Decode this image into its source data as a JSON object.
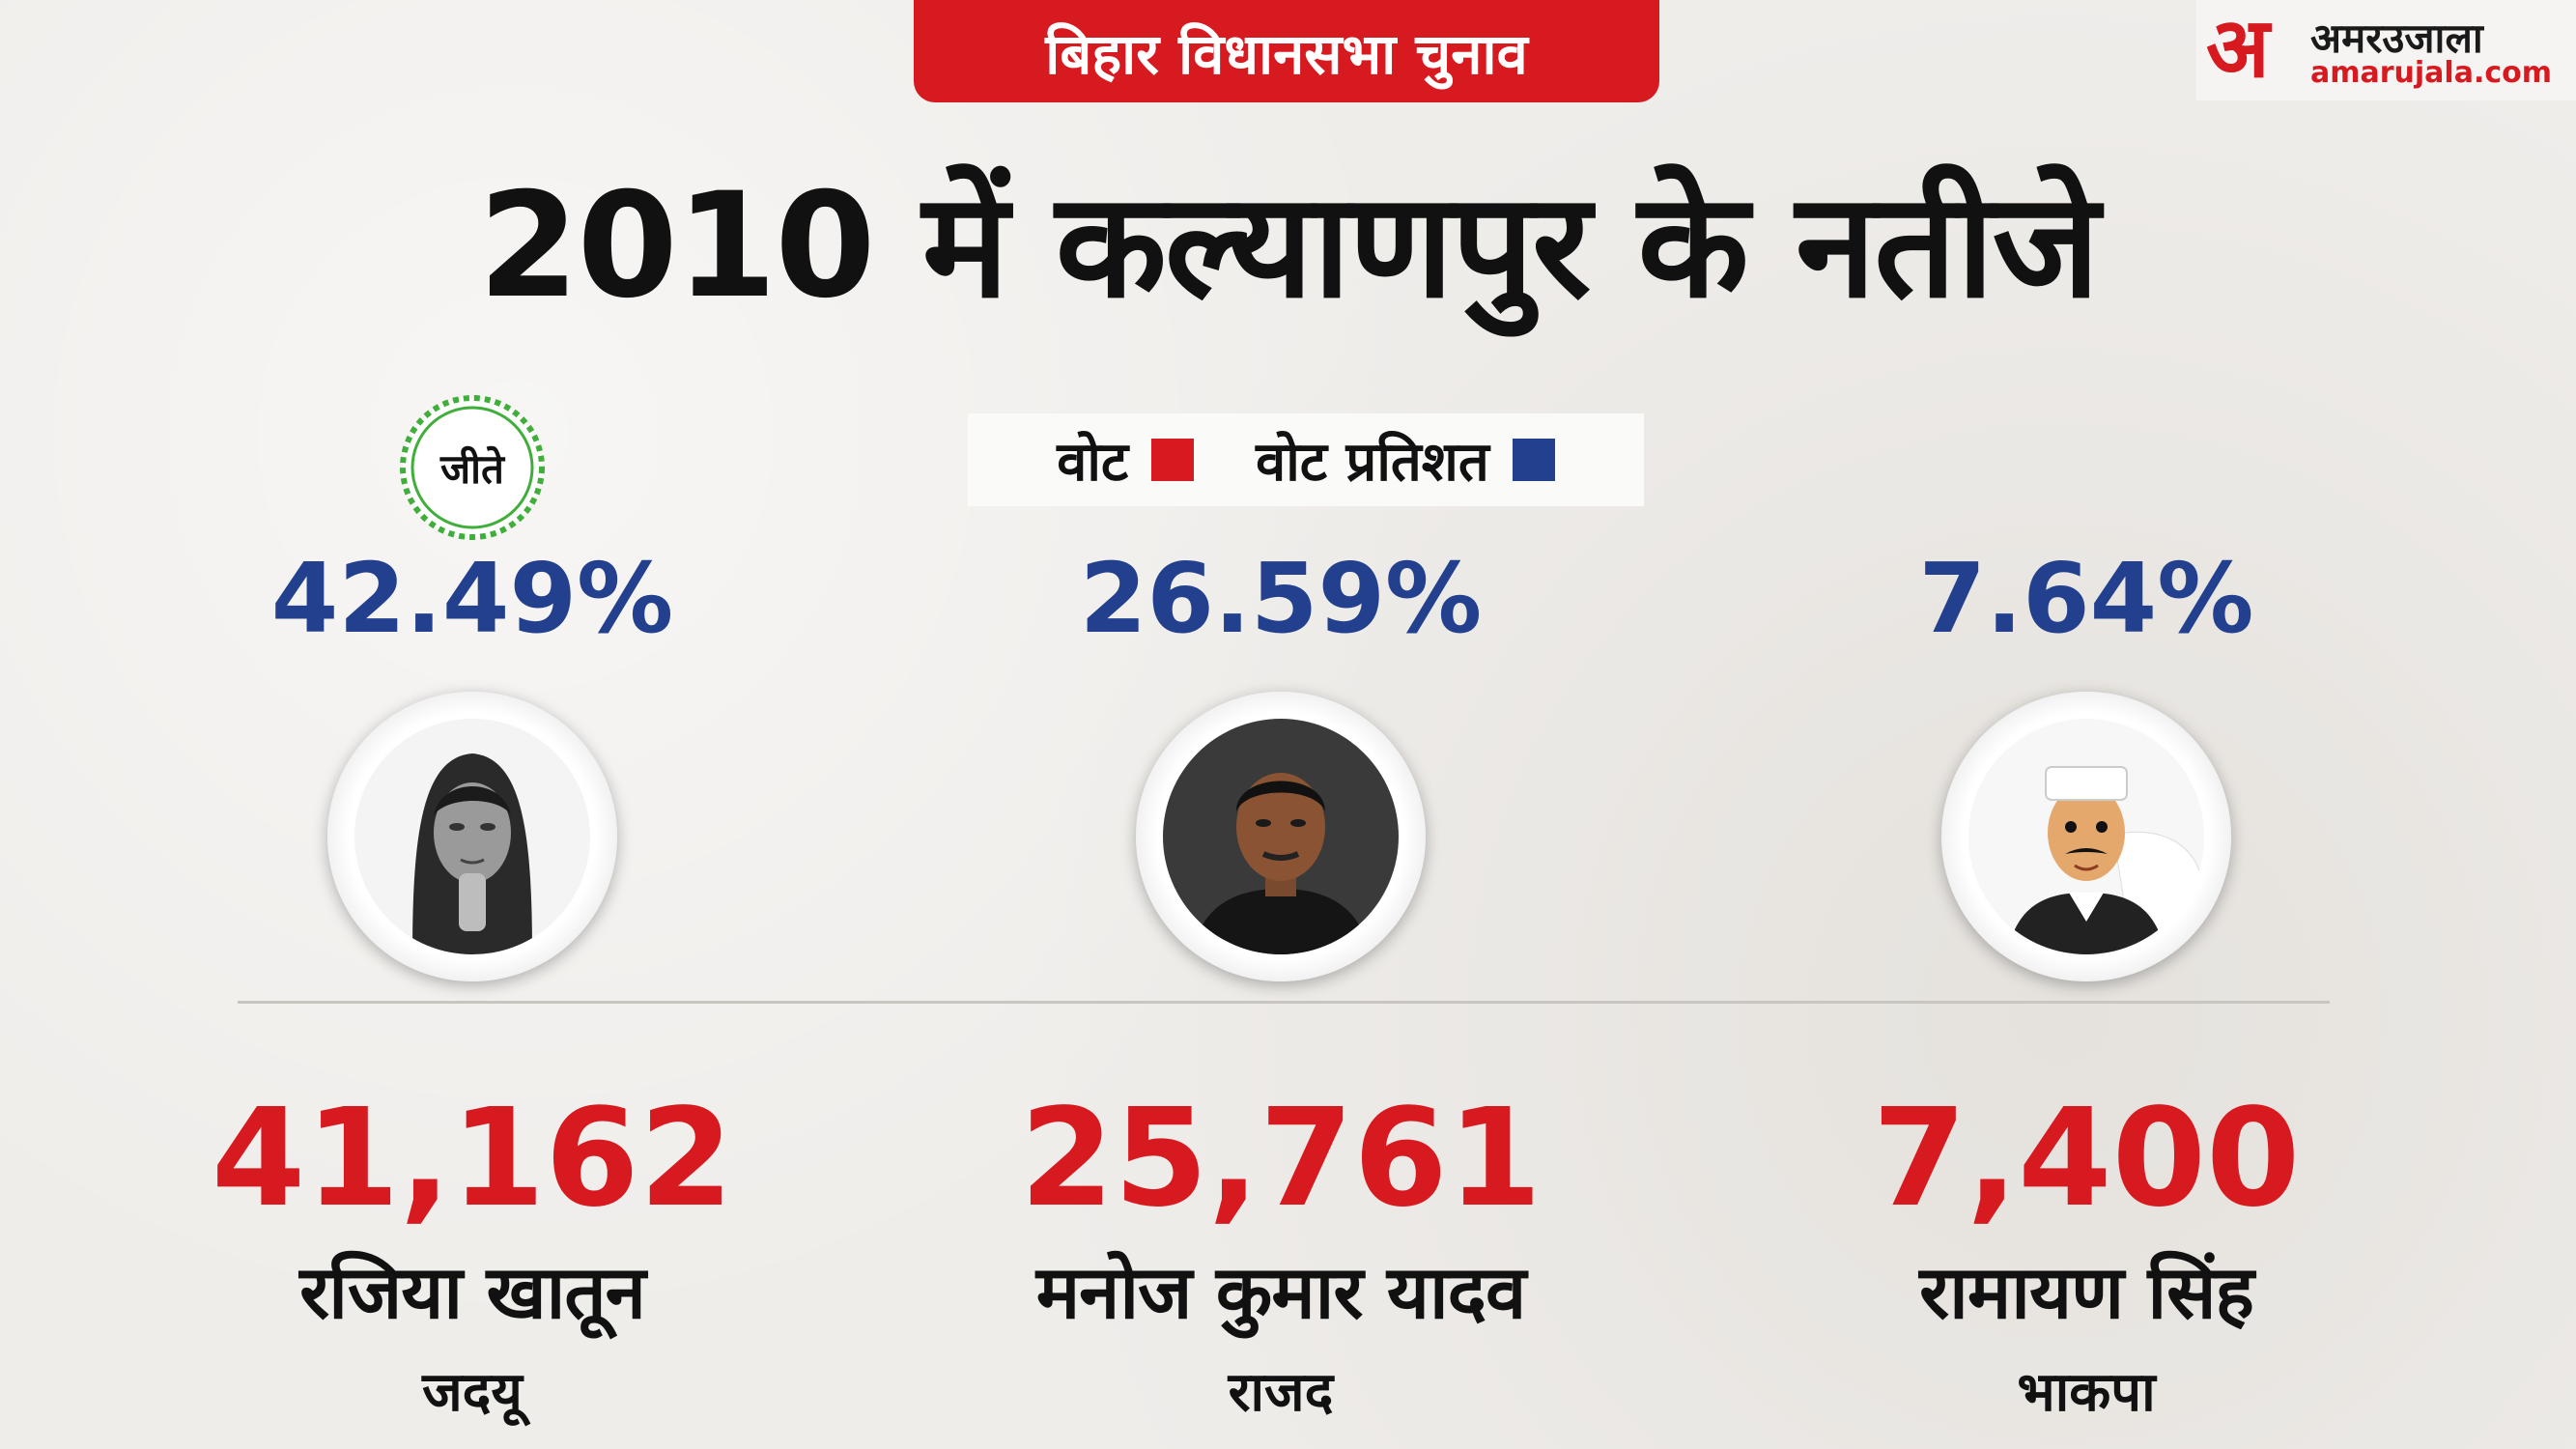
{
  "header": {
    "badge": "बिहार विधानसभा चुनाव",
    "title": "2010 में कल्याणपुर के नतीजे"
  },
  "logo": {
    "mark": "अ",
    "name": "अमरउजाला",
    "url": "amarujala.com"
  },
  "legend": {
    "votes_label": "वोट",
    "percent_label": "वोट प्रतिशत",
    "votes_color": "#d71920",
    "percent_color": "#23408e"
  },
  "winner_stamp": "जीते",
  "candidates": [
    {
      "percent": "42.49%",
      "votes": "41,162",
      "name": "रजिया खातून",
      "party": "जदयू",
      "photo": "female-candidate-photo"
    },
    {
      "percent": "26.59%",
      "votes": "25,761",
      "name": "मनोज कुमार यादव",
      "party": "राजद",
      "photo": "male-candidate-photo"
    },
    {
      "percent": "7.64%",
      "votes": "7,400",
      "name": "रामायण सिंह",
      "party": "भाकपा",
      "photo": "cartoon-politician-illustration"
    }
  ]
}
